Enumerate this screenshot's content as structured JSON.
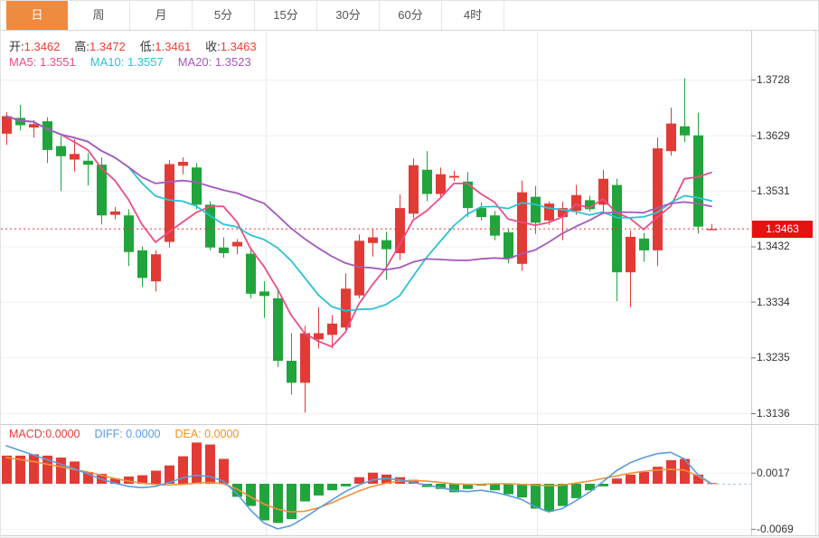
{
  "tabs": {
    "items": [
      "日",
      "周",
      "月",
      "5分",
      "15分",
      "30分",
      "60分",
      "4时"
    ],
    "selected": "日"
  },
  "ohlc_header": {
    "open_label": "开:",
    "open_value": "1.3462",
    "high_label": "高:",
    "high_value": "1.3472",
    "low_label": "低:",
    "low_value": "1.3461",
    "close_label": "收:",
    "close_value": "1.3463"
  },
  "ma_header": {
    "ma5_label": "MA5:",
    "ma5_value": "1.3551",
    "ma10_label": "MA10:",
    "ma10_value": "1.3557",
    "ma20_label": "MA20:",
    "ma20_value": "1.3523"
  },
  "macd_header": {
    "macd_label": "MACD:",
    "macd_value": "0.0000",
    "diff_label": "DIFF:",
    "diff_value": "0.0000",
    "dea_label": "DEA:",
    "dea_value": "0.0000"
  },
  "colors": {
    "up": "#e23b35",
    "down": "#21a43c",
    "ma5": "#ed4c86",
    "ma10": "#2cc2d6",
    "ma20": "#a45abb",
    "diff_line": "#5a9ce2",
    "dea_line": "#f0923a",
    "selected_tab": "#ee8b3f",
    "price_badge": "#e41311",
    "current_price_line": "#e53935",
    "grid": "#efefef",
    "border": "#cfcfcf"
  },
  "chart_data": {
    "type": "candlestick",
    "title": "Daily candlestick chart with MA5/MA10/MA20 overlays and MACD sub-chart",
    "legend_position": "top-left",
    "grid": true,
    "price_axis": {
      "ticks": [
        1.3728,
        1.3629,
        1.3531,
        1.3432,
        1.3334,
        1.3235,
        1.3136
      ],
      "current_price": 1.3463
    },
    "ma_periods": [
      5,
      10,
      20
    ],
    "candles_ohlc": [
      [
        1.3632,
        1.367,
        1.3612,
        1.3663
      ],
      [
        1.366,
        1.3683,
        1.3638,
        1.3647
      ],
      [
        1.3643,
        1.3656,
        1.3625,
        1.3649
      ],
      [
        1.3654,
        1.3661,
        1.358,
        1.3603
      ],
      [
        1.361,
        1.3628,
        1.353,
        1.3592
      ],
      [
        1.3586,
        1.3622,
        1.3565,
        1.3596
      ],
      [
        1.3584,
        1.3597,
        1.354,
        1.3577
      ],
      [
        1.3577,
        1.359,
        1.3471,
        1.3487
      ],
      [
        1.3488,
        1.3502,
        1.348,
        1.3494
      ],
      [
        1.3487,
        1.3498,
        1.3397,
        1.3422
      ],
      [
        1.3425,
        1.3432,
        1.336,
        1.3376
      ],
      [
        1.337,
        1.3425,
        1.3352,
        1.3418
      ],
      [
        1.344,
        1.3585,
        1.343,
        1.3578
      ],
      [
        1.3575,
        1.359,
        1.356,
        1.3582
      ],
      [
        1.3572,
        1.358,
        1.3498,
        1.3506
      ],
      [
        1.3506,
        1.3512,
        1.3425,
        1.343
      ],
      [
        1.343,
        1.3448,
        1.3412,
        1.342
      ],
      [
        1.3432,
        1.3445,
        1.3418,
        1.344
      ],
      [
        1.3419,
        1.343,
        1.334,
        1.3348
      ],
      [
        1.3352,
        1.337,
        1.3305,
        1.3344
      ],
      [
        1.334,
        1.3356,
        1.3218,
        1.3229
      ],
      [
        1.3229,
        1.3278,
        1.3169,
        1.319
      ],
      [
        1.319,
        1.3291,
        1.3137,
        1.3278
      ],
      [
        1.3267,
        1.3324,
        1.3251,
        1.3278
      ],
      [
        1.3275,
        1.331,
        1.3251,
        1.3295
      ],
      [
        1.3288,
        1.3384,
        1.328,
        1.3357
      ],
      [
        1.3345,
        1.3453,
        1.334,
        1.3442
      ],
      [
        1.3438,
        1.3463,
        1.3414,
        1.3448
      ],
      [
        1.3443,
        1.3458,
        1.3373,
        1.3427
      ],
      [
        1.342,
        1.3524,
        1.3408,
        1.35
      ],
      [
        1.349,
        1.3588,
        1.3482,
        1.3576
      ],
      [
        1.3568,
        1.3601,
        1.3512,
        1.3525
      ],
      [
        1.3525,
        1.3572,
        1.3518,
        1.356
      ],
      [
        1.3554,
        1.3566,
        1.3548,
        1.3557
      ],
      [
        1.3547,
        1.3564,
        1.3484,
        1.35
      ],
      [
        1.35,
        1.351,
        1.3478,
        1.3484
      ],
      [
        1.3487,
        1.3495,
        1.3443,
        1.3451
      ],
      [
        1.3457,
        1.3462,
        1.3402,
        1.3411
      ],
      [
        1.3401,
        1.3549,
        1.3389,
        1.3528
      ],
      [
        1.352,
        1.3539,
        1.3454,
        1.3474
      ],
      [
        1.3478,
        1.3512,
        1.347,
        1.3508
      ],
      [
        1.3484,
        1.3511,
        1.3443,
        1.35
      ],
      [
        1.3495,
        1.3541,
        1.3488,
        1.3523
      ],
      [
        1.3514,
        1.3522,
        1.3494,
        1.3498
      ],
      [
        1.3506,
        1.3568,
        1.3492,
        1.3552
      ],
      [
        1.3541,
        1.3552,
        1.3335,
        1.3386
      ],
      [
        1.3386,
        1.346,
        1.3324,
        1.3449
      ],
      [
        1.3446,
        1.3456,
        1.3405,
        1.3425
      ],
      [
        1.3425,
        1.3625,
        1.3397,
        1.3606
      ],
      [
        1.3601,
        1.3678,
        1.3593,
        1.365
      ],
      [
        1.3645,
        1.373,
        1.3617,
        1.3629
      ],
      [
        1.3629,
        1.3669,
        1.3455,
        1.3467
      ],
      [
        1.3462,
        1.3472,
        1.3461,
        1.3463
      ]
    ],
    "macd": {
      "axis_ticks": [
        0.0017,
        -0.0069
      ],
      "current": {
        "macd": 0.0,
        "diff": 0.0,
        "dea": 0.0
      },
      "histogram": [
        0.0043,
        0.0043,
        0.0045,
        0.0043,
        0.004,
        0.0034,
        0.0018,
        0.0015,
        0.0008,
        0.0011,
        0.0013,
        0.002,
        0.0028,
        0.0042,
        0.0063,
        0.006,
        0.0038,
        -0.002,
        -0.0034,
        -0.0056,
        -0.006,
        -0.0054,
        -0.0027,
        -0.0018,
        -0.001,
        -0.0004,
        0.001,
        0.0017,
        0.0014,
        0.001,
        0.0006,
        -0.0005,
        -0.0008,
        -0.0013,
        -0.0008,
        -0.0003,
        -0.001,
        -0.0016,
        -0.0021,
        -0.0038,
        -0.0042,
        -0.0034,
        -0.0022,
        -0.001,
        -0.0004,
        0.0008,
        0.0014,
        0.0018,
        0.0026,
        0.0036,
        0.0038,
        0.0014,
        0.0001
      ],
      "diff": [
        0.0058,
        0.0051,
        0.0044,
        0.0037,
        0.003,
        0.0023,
        0.0015,
        0.0007,
        0.0001,
        -0.0004,
        -0.0006,
        -0.0004,
        0.0002,
        0.0009,
        0.0013,
        0.0011,
        0.0004,
        -0.0015,
        -0.004,
        -0.006,
        -0.0069,
        -0.0064,
        -0.0052,
        -0.0038,
        -0.0025,
        -0.0012,
        -0.0002,
        0.0006,
        0.0008,
        0.0006,
        0.0002,
        -0.0002,
        -0.0006,
        -0.001,
        -0.0012,
        -0.001,
        -0.0013,
        -0.0018,
        -0.0024,
        -0.0035,
        -0.0043,
        -0.0038,
        -0.0026,
        -0.0013,
        0.0003,
        0.002,
        0.0032,
        0.004,
        0.0046,
        0.0048,
        0.0038,
        0.0014,
        0.0
      ],
      "dea": [
        0.004,
        0.0037,
        0.0034,
        0.003,
        0.0026,
        0.0022,
        0.0018,
        0.0013,
        0.0008,
        0.0004,
        0.0001,
        -0.0001,
        -0.0002,
        -0.0001,
        0.0001,
        0.0002,
        0.0,
        -0.0008,
        -0.002,
        -0.0031,
        -0.0039,
        -0.0043,
        -0.0042,
        -0.0037,
        -0.0029,
        -0.002,
        -0.0011,
        -0.0004,
        0.0001,
        0.0004,
        0.0005,
        0.0004,
        0.0002,
        0.0,
        -0.0001,
        -0.0001,
        0.0,
        0.0,
        -0.0001,
        -0.0002,
        -0.0003,
        -0.0002,
        0.0001,
        0.0004,
        0.0008,
        0.0012,
        0.0016,
        0.0019,
        0.0021,
        0.0022,
        0.0021,
        0.0012,
        0.0
      ]
    }
  }
}
